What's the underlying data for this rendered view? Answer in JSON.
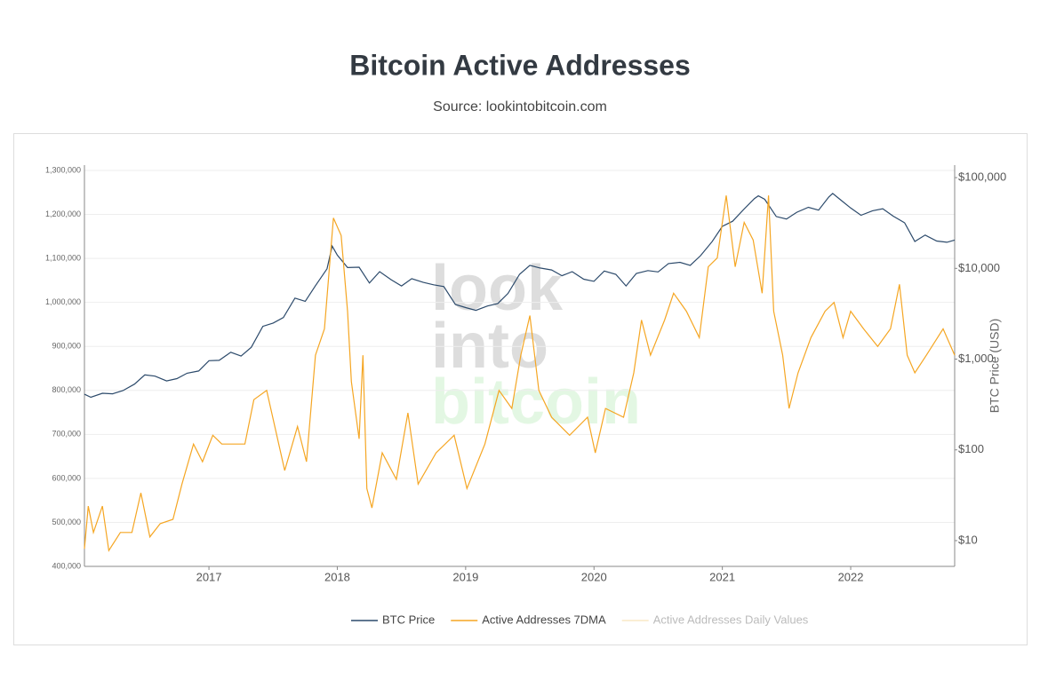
{
  "chart_data": {
    "type": "line",
    "title": "Bitcoin Active Addresses",
    "subtitle": "Source: lookintobitcoin.com",
    "y2_label": "BTC Price (USD)",
    "watermark": [
      "look",
      "into",
      "bitcoin"
    ],
    "xlim": [
      2016.03,
      2022.81
    ],
    "xticks": [
      2017,
      2018,
      2019,
      2020,
      2021,
      2022
    ],
    "ylim": [
      400000,
      1300000
    ],
    "yticks": [
      {
        "value": 400000,
        "label": "400,000"
      },
      {
        "value": 500000,
        "label": "500,000"
      },
      {
        "value": 600000,
        "label": "600,000"
      },
      {
        "value": 700000,
        "label": "700,000"
      },
      {
        "value": 800000,
        "label": "800,000"
      },
      {
        "value": 900000,
        "label": "900,000"
      },
      {
        "value": 1000000,
        "label": "1,000,000"
      },
      {
        "value": 1100000,
        "label": "1,100,000"
      },
      {
        "value": 1200000,
        "label": "1,200,000"
      },
      {
        "value": 1300000,
        "label": "1,300,000"
      }
    ],
    "y2lim": [
      5.2,
      120000
    ],
    "y2log": true,
    "y2ticks": [
      {
        "value": 10,
        "label": "$10"
      },
      {
        "value": 100,
        "label": "$100"
      },
      {
        "value": 1000,
        "label": "$1,000"
      },
      {
        "value": 10000,
        "label": "$10,000"
      },
      {
        "value": 100000,
        "label": "$100,000"
      }
    ],
    "grid": true,
    "series": [
      {
        "name": "BTC Price",
        "color": "#2c4a6b",
        "axis": "y2",
        "x": [
          2016.03,
          2016.08,
          2016.17,
          2016.25,
          2016.33,
          2016.42,
          2016.5,
          2016.58,
          2016.67,
          2016.75,
          2016.83,
          2016.92,
          2017.0,
          2017.08,
          2017.17,
          2017.25,
          2017.33,
          2017.42,
          2017.5,
          2017.58,
          2017.67,
          2017.75,
          2017.83,
          2017.92,
          2017.96,
          2018.0,
          2018.08,
          2018.17,
          2018.25,
          2018.33,
          2018.42,
          2018.5,
          2018.58,
          2018.67,
          2018.75,
          2018.83,
          2018.92,
          2019.0,
          2019.08,
          2019.17,
          2019.25,
          2019.33,
          2019.42,
          2019.5,
          2019.58,
          2019.67,
          2019.75,
          2019.83,
          2019.92,
          2020.0,
          2020.08,
          2020.17,
          2020.25,
          2020.33,
          2020.42,
          2020.5,
          2020.58,
          2020.67,
          2020.75,
          2020.83,
          2020.92,
          2021.0,
          2021.08,
          2021.17,
          2021.25,
          2021.28,
          2021.33,
          2021.42,
          2021.5,
          2021.58,
          2021.67,
          2021.75,
          2021.83,
          2021.86,
          2021.92,
          2022.0,
          2022.08,
          2022.17,
          2022.25,
          2022.33,
          2022.42,
          2022.5,
          2022.58,
          2022.67,
          2022.75,
          2022.81
        ],
        "values": [
          410,
          380,
          420,
          415,
          450,
          530,
          670,
          650,
          575,
          610,
          700,
          740,
          960,
          970,
          1190,
          1080,
          1350,
          2300,
          2500,
          2870,
          4700,
          4340,
          6450,
          9900,
          17600,
          14000,
          10200,
          10300,
          6900,
          9200,
          7500,
          6400,
          7700,
          7000,
          6600,
          6300,
          4000,
          3700,
          3450,
          3850,
          4100,
          5300,
          8600,
          10800,
          10100,
          9600,
          8300,
          9200,
          7600,
          7200,
          9350,
          8600,
          6400,
          8800,
          9450,
          9150,
          11300,
          11650,
          10800,
          13800,
          19700,
          29000,
          33100,
          45100,
          58800,
          63000,
          57700,
          37300,
          35000,
          41500,
          47100,
          43800,
          61300,
          67000,
          57000,
          46300,
          38500,
          43200,
          45500,
          37700,
          31800,
          19800,
          23300,
          20000,
          19400,
          20500
        ]
      },
      {
        "name": "Active Addresses 7DMA",
        "color": "#f5a623",
        "axis": "y",
        "x": [
          2016.03,
          2016.06,
          2016.1,
          2016.17,
          2016.22,
          2016.31,
          2016.4,
          2016.47,
          2016.54,
          2016.62,
          2016.72,
          2016.79,
          2016.88,
          2016.95,
          2017.03,
          2017.1,
          2017.19,
          2017.28,
          2017.35,
          2017.45,
          2017.59,
          2017.69,
          2017.76,
          2017.83,
          2017.9,
          2017.97,
          2018.03,
          2018.08,
          2018.11,
          2018.17,
          2018.2,
          2018.23,
          2018.27,
          2018.35,
          2018.46,
          2018.55,
          2018.63,
          2018.77,
          2018.91,
          2019.01,
          2019.15,
          2019.26,
          2019.36,
          2019.43,
          2019.5,
          2019.57,
          2019.67,
          2019.81,
          2019.95,
          2020.01,
          2020.09,
          2020.23,
          2020.31,
          2020.37,
          2020.44,
          2020.55,
          2020.62,
          2020.72,
          2020.82,
          2020.89,
          2020.96,
          2021.03,
          2021.1,
          2021.17,
          2021.24,
          2021.31,
          2021.36,
          2021.4,
          2021.47,
          2021.52,
          2021.59,
          2021.69,
          2021.8,
          2021.87,
          2021.94,
          2022.0,
          2022.1,
          2022.21,
          2022.31,
          2022.38,
          2022.44,
          2022.5,
          2022.59,
          2022.72,
          2022.81
        ],
        "values": [
          440000,
          537000,
          477000,
          537000,
          436000,
          477000,
          477000,
          567000,
          467000,
          497000,
          507000,
          587000,
          678000,
          638000,
          698000,
          678000,
          678000,
          678000,
          779000,
          800000,
          618000,
          718000,
          638000,
          880000,
          940000,
          1192000,
          1152000,
          980000,
          820000,
          690000,
          880000,
          577000,
          533000,
          658000,
          598000,
          749000,
          587000,
          658000,
          698000,
          577000,
          678000,
          800000,
          759000,
          880000,
          970000,
          800000,
          739000,
          698000,
          739000,
          658000,
          759000,
          739000,
          840000,
          960000,
          880000,
          960000,
          1021000,
          980000,
          920000,
          1081000,
          1101000,
          1243000,
          1081000,
          1182000,
          1142000,
          1021000,
          1243000,
          980000,
          880000,
          759000,
          840000,
          920000,
          980000,
          1000000,
          920000,
          980000,
          940000,
          900000,
          940000,
          1041000,
          880000,
          840000,
          880000,
          940000,
          880000
        ]
      },
      {
        "name": "Active Addresses Daily Values",
        "color": "#f7d9a0",
        "visible": false
      }
    ]
  }
}
